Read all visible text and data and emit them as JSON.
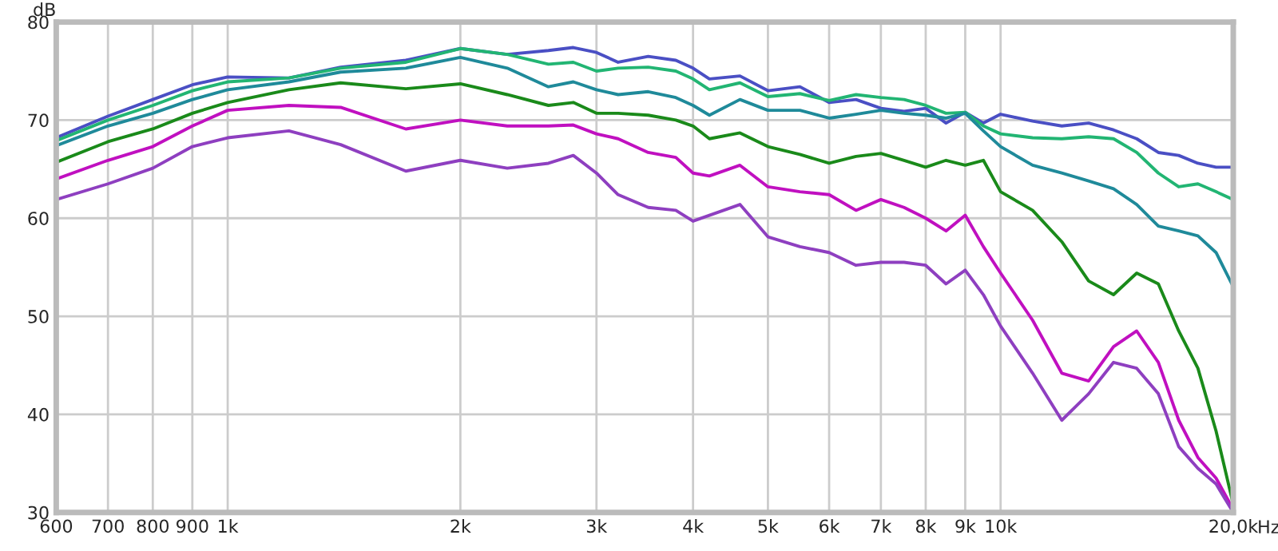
{
  "chart_data": {
    "type": "line",
    "xlabel": "Hz",
    "ylabel": "dB",
    "log": "x",
    "grid": true,
    "legend": false,
    "line_style": "solid",
    "marker": "none",
    "xlim": [
      600,
      20000
    ],
    "ylim": [
      30,
      80
    ],
    "xticks": [
      600,
      700,
      800,
      900,
      {
        "value": 1000,
        "label": "1k"
      },
      {
        "value": 2000,
        "label": "2k"
      },
      {
        "value": 3000,
        "label": "3k"
      },
      {
        "value": 4000,
        "label": "4k"
      },
      {
        "value": 5000,
        "label": "5k"
      },
      {
        "value": 6000,
        "label": "6k"
      },
      {
        "value": 7000,
        "label": "7k"
      },
      {
        "value": 8000,
        "label": "8k"
      },
      {
        "value": 9000,
        "label": "9k"
      },
      {
        "value": 10000,
        "label": "10k"
      },
      {
        "value": 20000,
        "label": "20,0k"
      }
    ],
    "yticks": [
      30,
      40,
      50,
      60,
      70,
      80
    ],
    "x": [
      600,
      700,
      800,
      900,
      1000,
      1200,
      1400,
      1700,
      2000,
      2300,
      2600,
      2800,
      3000,
      3200,
      3500,
      3800,
      4000,
      4200,
      4600,
      5000,
      5500,
      6000,
      6500,
      7000,
      7500,
      8000,
      8500,
      9000,
      9500,
      10000,
      11000,
      12000,
      13000,
      14000,
      15000,
      16000,
      17000,
      18000,
      19000,
      20000
    ],
    "series": [
      {
        "color": "#4a4fc4",
        "values": [
          68.2,
          70.4,
          72.1,
          73.6,
          74.4,
          74.3,
          75.4,
          76.1,
          77.3,
          76.7,
          77.1,
          77.4,
          76.9,
          75.9,
          76.5,
          76.1,
          75.3,
          74.2,
          74.5,
          73.0,
          73.4,
          71.8,
          72.1,
          71.2,
          70.9,
          71.2,
          69.7,
          70.8,
          69.7,
          70.6,
          69.9,
          69.4,
          69.7,
          69.0,
          68.1,
          66.7,
          66.4,
          65.6,
          65.2,
          65.2
        ]
      },
      {
        "color": "#22b573",
        "values": [
          67.9,
          70.0,
          71.5,
          73.0,
          73.9,
          74.3,
          75.3,
          75.9,
          77.3,
          76.7,
          75.7,
          75.9,
          75.0,
          75.3,
          75.4,
          75.0,
          74.2,
          73.1,
          73.8,
          72.4,
          72.7,
          72.0,
          72.6,
          72.3,
          72.1,
          71.5,
          70.7,
          70.8,
          69.4,
          68.6,
          68.2,
          68.1,
          68.3,
          68.1,
          66.7,
          64.6,
          63.2,
          63.5,
          62.7,
          61.9
        ]
      },
      {
        "color": "#1f8a9a",
        "values": [
          67.4,
          69.4,
          70.7,
          72.1,
          73.1,
          73.9,
          74.9,
          75.3,
          76.4,
          75.3,
          73.4,
          73.9,
          73.1,
          72.6,
          72.9,
          72.3,
          71.5,
          70.5,
          72.1,
          71.0,
          71.0,
          70.2,
          70.6,
          71.0,
          70.7,
          70.5,
          70.2,
          70.7,
          68.9,
          67.3,
          65.4,
          64.6,
          63.8,
          63.0,
          61.4,
          59.2,
          58.7,
          58.2,
          56.5,
          53.0
        ]
      },
      {
        "color": "#1a8a1a",
        "values": [
          65.7,
          67.8,
          69.1,
          70.7,
          71.8,
          73.1,
          73.8,
          73.2,
          73.7,
          72.6,
          71.5,
          71.8,
          70.7,
          70.7,
          70.5,
          70.0,
          69.4,
          68.1,
          68.7,
          67.3,
          66.5,
          65.6,
          66.3,
          66.6,
          65.9,
          65.2,
          65.9,
          65.4,
          65.9,
          62.7,
          60.8,
          57.6,
          53.6,
          52.2,
          54.4,
          53.3,
          48.5,
          44.7,
          38.3,
          30.8
        ]
      },
      {
        "color": "#c010c0",
        "values": [
          64.0,
          65.9,
          67.3,
          69.4,
          71.0,
          71.5,
          71.3,
          69.1,
          70.0,
          69.4,
          69.4,
          69.5,
          68.6,
          68.1,
          66.7,
          66.2,
          64.6,
          64.3,
          65.4,
          63.2,
          62.7,
          62.4,
          60.8,
          61.9,
          61.1,
          60.0,
          58.7,
          60.3,
          57.1,
          54.4,
          49.6,
          44.2,
          43.4,
          46.9,
          48.5,
          45.3,
          39.4,
          35.6,
          33.5,
          30.3
        ]
      },
      {
        "color": "#8e3fc0",
        "values": [
          61.9,
          63.5,
          65.1,
          67.3,
          68.2,
          68.9,
          67.5,
          64.8,
          65.9,
          65.1,
          65.6,
          66.4,
          64.6,
          62.4,
          61.1,
          60.8,
          59.7,
          60.3,
          61.4,
          58.1,
          57.1,
          56.5,
          55.2,
          55.5,
          55.5,
          55.2,
          53.3,
          54.7,
          52.2,
          49.0,
          44.2,
          39.4,
          42.1,
          45.3,
          44.7,
          42.1,
          36.7,
          34.5,
          32.9,
          30.0
        ]
      }
    ]
  }
}
